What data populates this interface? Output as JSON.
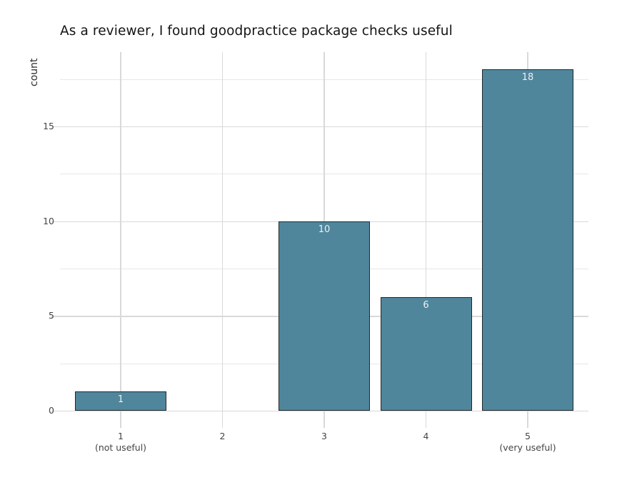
{
  "title": "As a reviewer, I found goodpractice package checks useful",
  "chart_data": {
    "type": "bar",
    "title": "As a reviewer, I found goodpractice package checks useful",
    "xlabel": "",
    "ylabel": "count",
    "categories": [
      "1",
      "2",
      "3",
      "4",
      "5"
    ],
    "category_sublabels": [
      "(not useful)",
      "",
      "",
      "",
      "(very useful)"
    ],
    "values": [
      1,
      0,
      10,
      6,
      18
    ],
    "bar_value_labels": [
      "1",
      "",
      "10",
      "6",
      "18"
    ],
    "y_major_ticks": [
      0,
      5,
      10,
      15
    ],
    "y_minor_ticks": [
      2.5,
      7.5,
      12.5,
      17.5
    ],
    "ylim": [
      -0.9,
      18.9
    ],
    "grid": "major-and-minor, light grey on white",
    "legend_position": "none",
    "colors": {
      "bar_fill": "#4f869c",
      "bar_border": "#20282c",
      "bar_value_label": "#f0f0f0",
      "grid_major": "#d9d9d9",
      "grid_minor": "#e8e8e8",
      "tick_label": "#444444",
      "title_text": "#141414",
      "background": "#ffffff"
    }
  }
}
